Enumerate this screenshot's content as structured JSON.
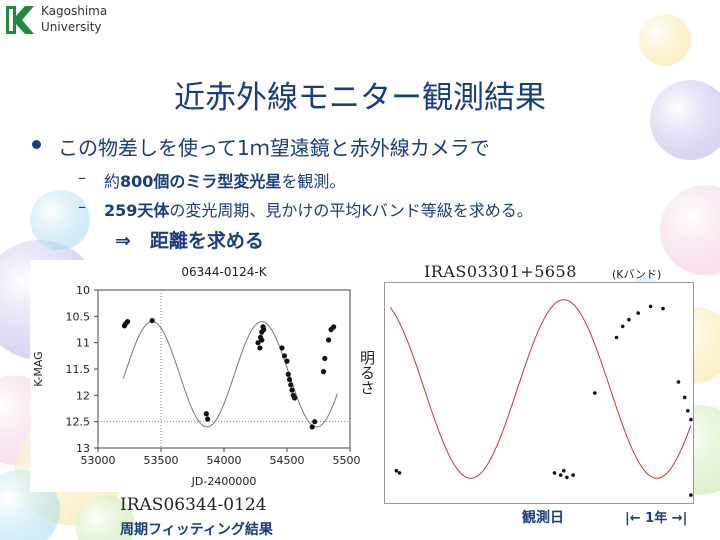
{
  "logo": {
    "line1": "Kagoshima",
    "line2": "University"
  },
  "slide_title": "近赤外線モニター観測結果",
  "bullet_main": "この物差しを使って1ｍ望遠鏡と赤外線カメラで",
  "sub1": {
    "prefix": "約",
    "bold": "800個のミラ型変光星",
    "suffix": "を観測。"
  },
  "sub2": {
    "bold": "259天体",
    "suffix": "の変光周期、見かけの平均Kバンド等級を求める。"
  },
  "result": "⇒　距離を求める",
  "left_chart_caption": "IRAS06344-0124",
  "left_chart_subcaption": "周期フィッティング結果",
  "right_chart_label": "IRAS03301+5658",
  "right_chart_band": "(Kバンド)",
  "right_chart_xlabel": "観測日",
  "right_chart_ylabel": "明るさ",
  "right_chart_period": "|← 1年 →|",
  "colors": {
    "accent": "#1a3d7c",
    "fit_curve": "#d9302c",
    "points": "#111111"
  },
  "chart_data": [
    {
      "type": "scatter",
      "title": "06344-0124-K",
      "xlabel": "JD-2400000",
      "ylabel": "K-MAG",
      "xlim": [
        53000,
        55000
      ],
      "ylim": [
        13,
        10
      ],
      "y_inverted": true,
      "xticks": [
        "53000",
        "53500",
        "54000",
        "54500",
        "55000"
      ],
      "yticks": [
        "10",
        "10.5",
        "11",
        "11.5",
        "12",
        "12.5",
        "13"
      ],
      "fit": "sinusoid",
      "points": [
        [
          53210,
          10.68
        ],
        [
          53220,
          10.64
        ],
        [
          53235,
          10.6
        ],
        [
          53430,
          10.58
        ],
        [
          53860,
          12.35
        ],
        [
          53870,
          12.45
        ],
        [
          54290,
          10.9
        ],
        [
          54300,
          10.8
        ],
        [
          54310,
          10.7
        ],
        [
          54315,
          10.75
        ],
        [
          54300,
          10.95
        ],
        [
          54285,
          11.1
        ],
        [
          54270,
          11.0
        ],
        [
          54460,
          11.1
        ],
        [
          54480,
          11.25
        ],
        [
          54500,
          11.35
        ],
        [
          54510,
          11.6
        ],
        [
          54520,
          11.7
        ],
        [
          54530,
          11.8
        ],
        [
          54540,
          11.9
        ],
        [
          54550,
          12.0
        ],
        [
          54560,
          12.05
        ],
        [
          54700,
          12.6
        ],
        [
          54720,
          12.5
        ],
        [
          54790,
          11.55
        ],
        [
          54800,
          11.3
        ],
        [
          54830,
          10.95
        ],
        [
          54850,
          10.75
        ],
        [
          54870,
          10.7
        ]
      ],
      "series": [
        {
          "name": "",
          "values": []
        }
      ]
    },
    {
      "type": "scatter",
      "title": "IRAS03301+5658",
      "xlabel": "観測日",
      "ylabel": "明るさ",
      "fit": "sinusoid",
      "points_fraction": [
        [
          0.04,
          0.85
        ],
        [
          0.05,
          0.86
        ],
        [
          0.55,
          0.86
        ],
        [
          0.57,
          0.87
        ],
        [
          0.59,
          0.88
        ],
        [
          0.61,
          0.87
        ],
        [
          0.58,
          0.85
        ],
        [
          0.68,
          0.5
        ],
        [
          0.75,
          0.25
        ],
        [
          0.77,
          0.2
        ],
        [
          0.79,
          0.17
        ],
        [
          0.82,
          0.14
        ],
        [
          0.86,
          0.11
        ],
        [
          0.9,
          0.12
        ],
        [
          0.95,
          0.45
        ],
        [
          0.97,
          0.52
        ],
        [
          0.98,
          0.58
        ],
        [
          0.99,
          0.62
        ],
        [
          0.99,
          0.96
        ]
      ]
    }
  ]
}
